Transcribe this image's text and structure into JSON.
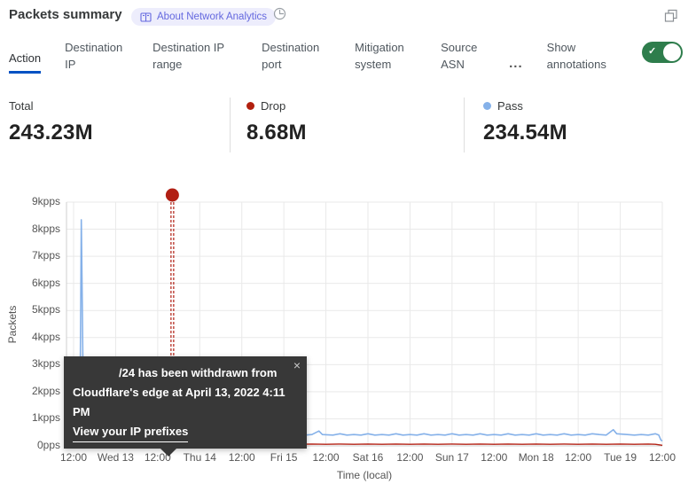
{
  "header": {
    "title": "Packets summary",
    "about_badge_label": "About Network Analytics"
  },
  "tabs": {
    "items": [
      {
        "label": "Action",
        "active": true
      },
      {
        "label": "Destination IP",
        "active": false
      },
      {
        "label": "Destination IP range",
        "active": false
      },
      {
        "label": "Destination port",
        "active": false
      },
      {
        "label": "Mitigation system",
        "active": false
      },
      {
        "label": "Source ASN",
        "active": false
      }
    ],
    "more_label": "...",
    "show_annotations_label": "Show annotations",
    "annotations_toggle_on": true
  },
  "colors": {
    "accent_blue": "#0051c3",
    "toggle_green": "#2e7d4c",
    "pass_blue": "#85b1e9",
    "drop_red": "#b2200f",
    "annotation_red": "#b11f14",
    "grid": "#e9e9e9",
    "axis": "#cfcfcf"
  },
  "stats": {
    "total": {
      "label": "Total",
      "value": "243.23M"
    },
    "drop": {
      "label": "Drop",
      "value": "8.68M",
      "color": "#b2200f"
    },
    "pass": {
      "label": "Pass",
      "value": "234.54M",
      "color": "#85b1e9"
    }
  },
  "tooltip": {
    "line1": "/24 has been withdrawn from",
    "line2": "Cloudflare's edge at April 13, 2022 4:11 PM",
    "link_label": "View your IP prefixes",
    "close_glyph": "×"
  },
  "chart_data": {
    "type": "line",
    "title": "Packets summary",
    "xlabel": "Time (local)",
    "ylabel": "Packets",
    "x_unit": "hours after Tue Apr 12 2022 12:00 local",
    "xlim": [
      -2,
      168
    ],
    "ylim": [
      0,
      9
    ],
    "grid": true,
    "legend_position": "stat cards above chart",
    "y_ticks": [
      {
        "v": 0,
        "label": "0pps"
      },
      {
        "v": 1,
        "label": "1kpps"
      },
      {
        "v": 2,
        "label": "2kpps"
      },
      {
        "v": 3,
        "label": "3kpps"
      },
      {
        "v": 4,
        "label": "4kpps"
      },
      {
        "v": 5,
        "label": "5kpps"
      },
      {
        "v": 6,
        "label": "6kpps"
      },
      {
        "v": 7,
        "label": "7kpps"
      },
      {
        "v": 8,
        "label": "8kpps"
      },
      {
        "v": 9,
        "label": "9kpps"
      }
    ],
    "x_ticks": [
      {
        "h": 0,
        "label": "12:00"
      },
      {
        "h": 12,
        "label": "Wed 13"
      },
      {
        "h": 24,
        "label": "12:00"
      },
      {
        "h": 36,
        "label": "Thu 14"
      },
      {
        "h": 48,
        "label": "12:00"
      },
      {
        "h": 60,
        "label": "Fri 15"
      },
      {
        "h": 72,
        "label": "12:00"
      },
      {
        "h": 84,
        "label": "Sat 16"
      },
      {
        "h": 96,
        "label": "12:00"
      },
      {
        "h": 108,
        "label": "Sun 17"
      },
      {
        "h": 120,
        "label": "12:00"
      },
      {
        "h": 132,
        "label": "Mon 18"
      },
      {
        "h": 144,
        "label": "12:00"
      },
      {
        "h": 156,
        "label": "Tue 19"
      },
      {
        "h": 168,
        "label": "12:00"
      }
    ],
    "annotation": {
      "hours": 28.18,
      "time_text": "April 13, 2022 4:11 PM",
      "text": "/24 has been withdrawn from Cloudflare's edge at April 13, 2022 4:11 PM",
      "color": "#b11f14"
    },
    "series": [
      {
        "name": "Pass",
        "color": "#85b1e9",
        "width": 1.6,
        "points": [
          [
            -2,
            0.45
          ],
          [
            0,
            0.42
          ],
          [
            1,
            0.45
          ],
          [
            1.8,
            0.7
          ],
          [
            2.2,
            8.35
          ],
          [
            2.5,
            5.0
          ],
          [
            2.8,
            1.1
          ],
          [
            3.5,
            0.85
          ],
          [
            4.3,
            1.05
          ],
          [
            5,
            0.75
          ],
          [
            6,
            0.5
          ],
          [
            8,
            0.45
          ],
          [
            10,
            0.42
          ],
          [
            12,
            0.4
          ],
          [
            14,
            0.42
          ],
          [
            16,
            0.4
          ],
          [
            18,
            0.5
          ],
          [
            19.5,
            0.68
          ],
          [
            21,
            0.45
          ],
          [
            24,
            0.42
          ],
          [
            26,
            0.4
          ],
          [
            28,
            0.45
          ],
          [
            30,
            0.4
          ],
          [
            32,
            0.42
          ],
          [
            34,
            0.4
          ],
          [
            36,
            0.45
          ],
          [
            38,
            0.42
          ],
          [
            40,
            0.5
          ],
          [
            41.5,
            0.48
          ],
          [
            44,
            0.42
          ],
          [
            46,
            0.4
          ],
          [
            48,
            0.45
          ],
          [
            50,
            0.4
          ],
          [
            52,
            0.42
          ],
          [
            54,
            0.55
          ],
          [
            55,
            0.42
          ],
          [
            58,
            0.4
          ],
          [
            60,
            0.42
          ],
          [
            62,
            0.4
          ],
          [
            64,
            0.45
          ],
          [
            66,
            0.4
          ],
          [
            68,
            0.42
          ],
          [
            70,
            0.55
          ],
          [
            71,
            0.42
          ],
          [
            74,
            0.4
          ],
          [
            76,
            0.45
          ],
          [
            78,
            0.4
          ],
          [
            80,
            0.42
          ],
          [
            82,
            0.4
          ],
          [
            84,
            0.45
          ],
          [
            86,
            0.4
          ],
          [
            88,
            0.42
          ],
          [
            90,
            0.4
          ],
          [
            92,
            0.45
          ],
          [
            94,
            0.4
          ],
          [
            96,
            0.42
          ],
          [
            98,
            0.4
          ],
          [
            100,
            0.45
          ],
          [
            102,
            0.4
          ],
          [
            104,
            0.42
          ],
          [
            106,
            0.4
          ],
          [
            108,
            0.45
          ],
          [
            110,
            0.4
          ],
          [
            112,
            0.42
          ],
          [
            114,
            0.4
          ],
          [
            116,
            0.45
          ],
          [
            118,
            0.4
          ],
          [
            120,
            0.42
          ],
          [
            122,
            0.4
          ],
          [
            124,
            0.45
          ],
          [
            126,
            0.4
          ],
          [
            128,
            0.42
          ],
          [
            130,
            0.4
          ],
          [
            132,
            0.45
          ],
          [
            134,
            0.4
          ],
          [
            136,
            0.42
          ],
          [
            138,
            0.4
          ],
          [
            140,
            0.45
          ],
          [
            142,
            0.4
          ],
          [
            144,
            0.42
          ],
          [
            146,
            0.4
          ],
          [
            148,
            0.45
          ],
          [
            150,
            0.42
          ],
          [
            152,
            0.4
          ],
          [
            154,
            0.6
          ],
          [
            155,
            0.45
          ],
          [
            158,
            0.42
          ],
          [
            160,
            0.4
          ],
          [
            162,
            0.42
          ],
          [
            164,
            0.4
          ],
          [
            166,
            0.45
          ],
          [
            167,
            0.4
          ],
          [
            167.6,
            0.22
          ],
          [
            168,
            0.18
          ]
        ]
      },
      {
        "name": "Drop",
        "color": "#b32114",
        "width": 1.4,
        "points": [
          [
            -2,
            0.07
          ],
          [
            0,
            0.06
          ],
          [
            4,
            0.07
          ],
          [
            8,
            0.06
          ],
          [
            12,
            0.07
          ],
          [
            16,
            0.06
          ],
          [
            20,
            0.07
          ],
          [
            24,
            0.06
          ],
          [
            28,
            0.07
          ],
          [
            32,
            0.06
          ],
          [
            36,
            0.07
          ],
          [
            40,
            0.08
          ],
          [
            41,
            0.3
          ],
          [
            42,
            0.08
          ],
          [
            44,
            0.07
          ],
          [
            48,
            0.06
          ],
          [
            52,
            0.07
          ],
          [
            56,
            0.06
          ],
          [
            60,
            0.07
          ],
          [
            64,
            0.06
          ],
          [
            68,
            0.07
          ],
          [
            72,
            0.06
          ],
          [
            76,
            0.07
          ],
          [
            80,
            0.06
          ],
          [
            84,
            0.07
          ],
          [
            88,
            0.06
          ],
          [
            92,
            0.07
          ],
          [
            96,
            0.06
          ],
          [
            100,
            0.07
          ],
          [
            104,
            0.06
          ],
          [
            108,
            0.07
          ],
          [
            112,
            0.06
          ],
          [
            116,
            0.07
          ],
          [
            120,
            0.06
          ],
          [
            124,
            0.07
          ],
          [
            128,
            0.06
          ],
          [
            132,
            0.07
          ],
          [
            136,
            0.06
          ],
          [
            140,
            0.07
          ],
          [
            144,
            0.06
          ],
          [
            148,
            0.07
          ],
          [
            152,
            0.06
          ],
          [
            156,
            0.07
          ],
          [
            160,
            0.06
          ],
          [
            164,
            0.07
          ],
          [
            166,
            0.06
          ],
          [
            167.6,
            0.03
          ],
          [
            168,
            0.02
          ]
        ]
      }
    ]
  }
}
